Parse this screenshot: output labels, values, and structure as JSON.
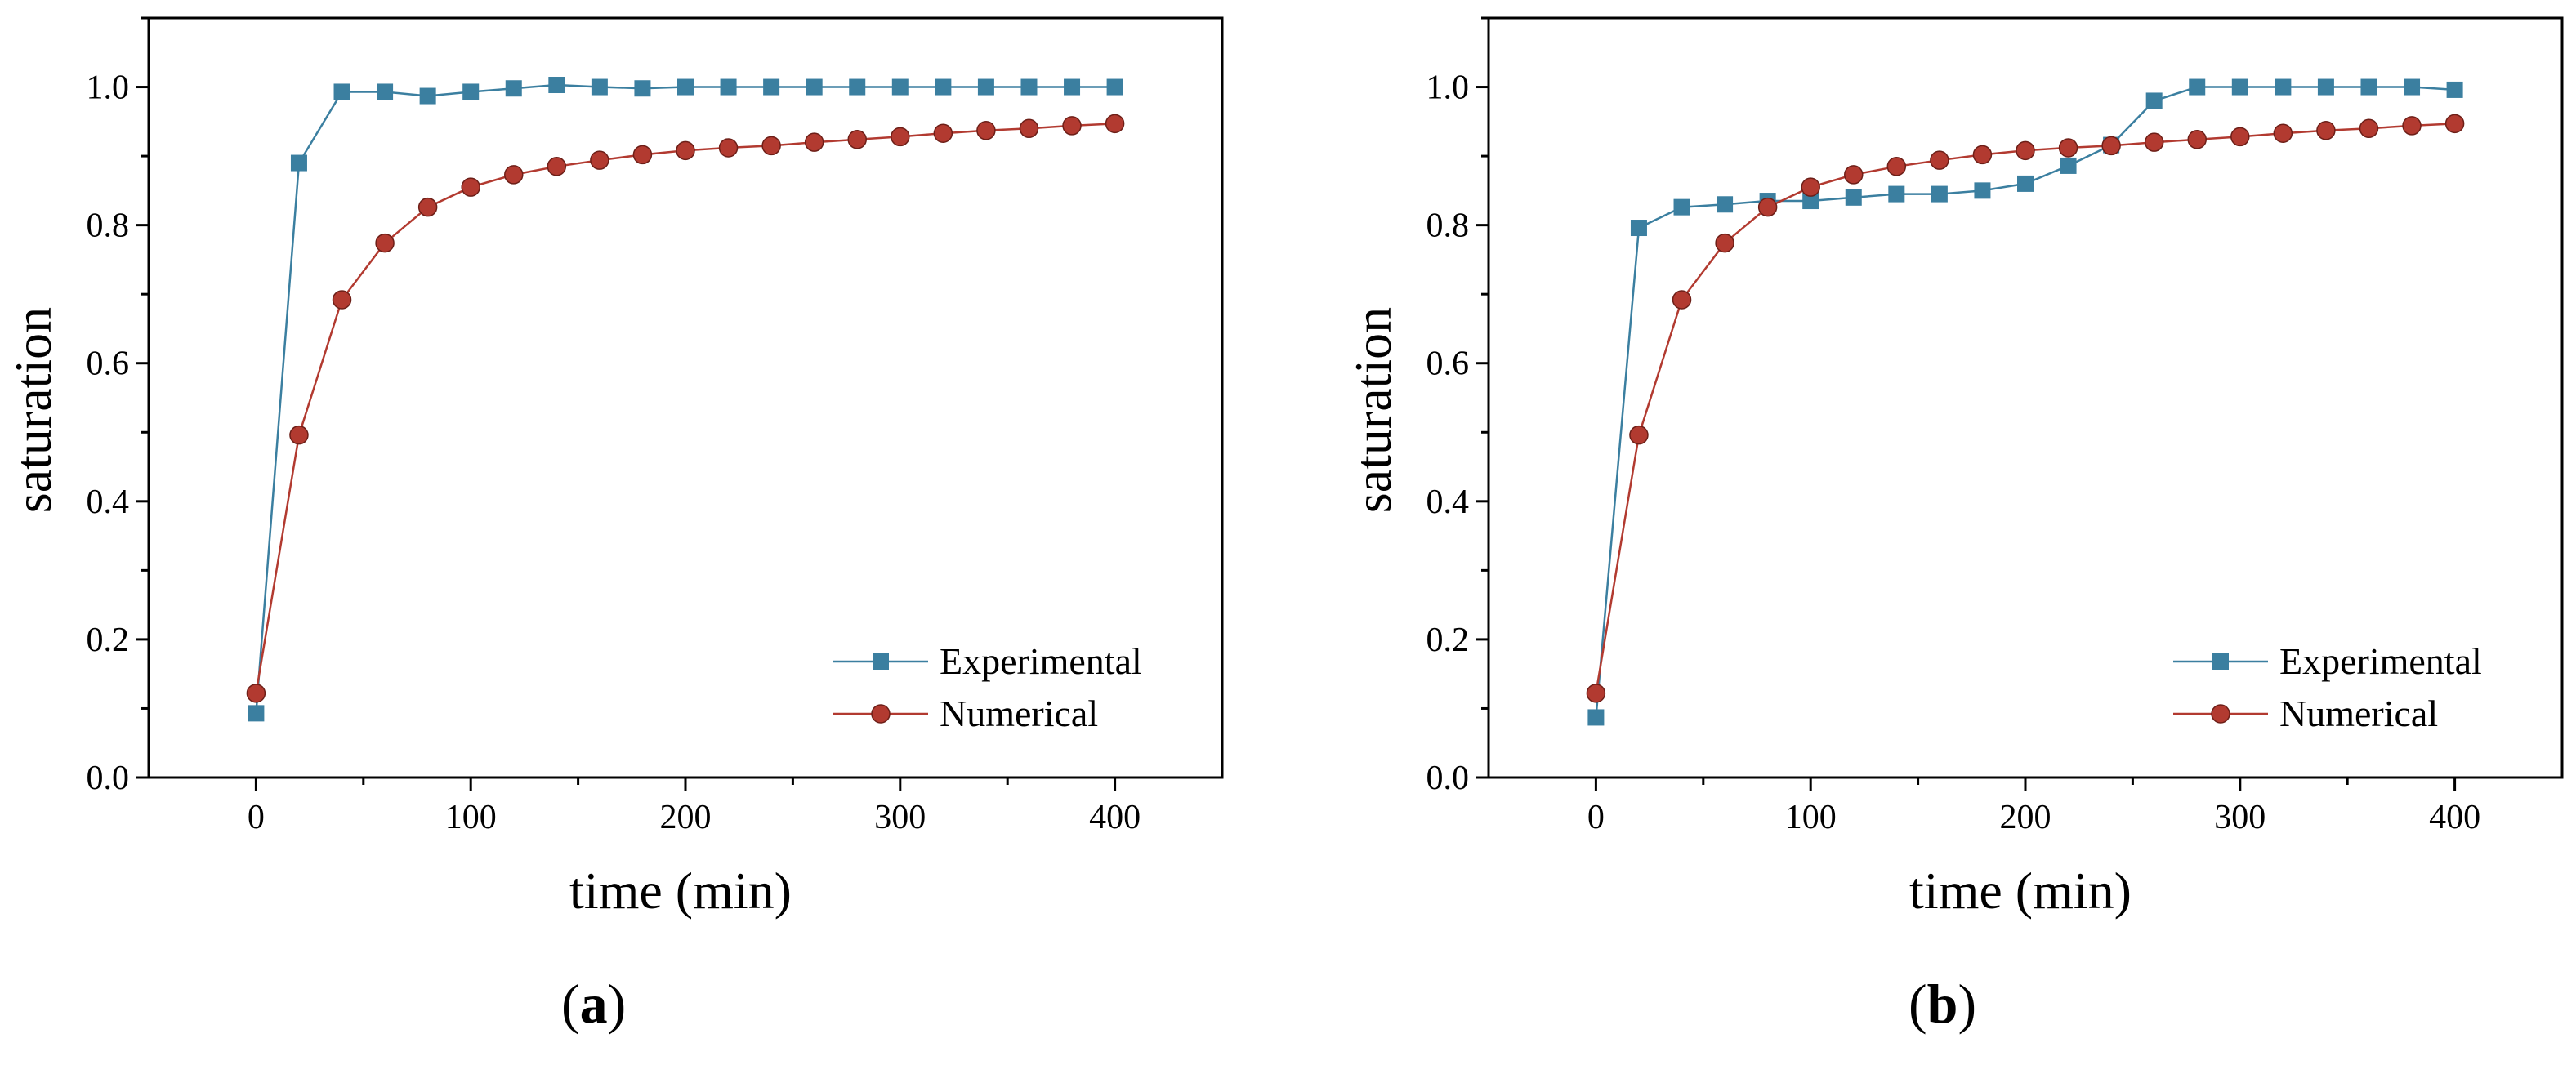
{
  "figure": {
    "panels": [
      {
        "label_open": "(",
        "label_letter": "a",
        "label_close": ")"
      },
      {
        "label_open": "(",
        "label_letter": "b",
        "label_close": ")"
      }
    ]
  },
  "colors": {
    "experimental": "#3b7fa0",
    "numerical": "#b23a30",
    "axis": "#000000"
  },
  "chart_data": [
    {
      "type": "line",
      "xlabel": "time (min)",
      "ylabel": "saturation",
      "xlim": [
        -50,
        450
      ],
      "ylim": [
        0.0,
        1.1
      ],
      "xticks": [
        0,
        100,
        200,
        300,
        400
      ],
      "yticks": [
        0.0,
        0.2,
        0.4,
        0.6,
        0.8,
        1.0
      ],
      "xtick_labels": [
        "0",
        "100",
        "200",
        "300",
        "400"
      ],
      "ytick_labels": [
        "0.0",
        "0.2",
        "0.4",
        "0.6",
        "0.8",
        "1.0"
      ],
      "legend_position": "bottom-right",
      "series": [
        {
          "name": "Experimental",
          "marker": "square",
          "x": [
            0,
            20,
            40,
            60,
            80,
            100,
            120,
            140,
            160,
            180,
            200,
            220,
            240,
            260,
            280,
            300,
            320,
            340,
            360,
            380,
            400
          ],
          "y": [
            0.093,
            0.89,
            0.993,
            0.993,
            0.987,
            0.993,
            0.998,
            1.003,
            1.0,
            0.998,
            1.0,
            1.0,
            1.0,
            1.0,
            1.0,
            1.0,
            1.0,
            1.0,
            1.0,
            1.0,
            1.0
          ]
        },
        {
          "name": "Numerical",
          "marker": "circle",
          "x": [
            0,
            20,
            40,
            60,
            80,
            100,
            120,
            140,
            160,
            180,
            200,
            220,
            240,
            260,
            280,
            300,
            320,
            340,
            360,
            380,
            400
          ],
          "y": [
            0.122,
            0.496,
            0.692,
            0.774,
            0.826,
            0.855,
            0.873,
            0.885,
            0.894,
            0.902,
            0.908,
            0.912,
            0.915,
            0.92,
            0.924,
            0.928,
            0.933,
            0.937,
            0.94,
            0.944,
            0.947
          ]
        }
      ]
    },
    {
      "type": "line",
      "xlabel": "time (min)",
      "ylabel": "saturation",
      "xlim": [
        -50,
        450
      ],
      "ylim": [
        0.0,
        1.1
      ],
      "xticks": [
        0,
        100,
        200,
        300,
        400
      ],
      "yticks": [
        0.0,
        0.2,
        0.4,
        0.6,
        0.8,
        1.0
      ],
      "xtick_labels": [
        "0",
        "100",
        "200",
        "300",
        "400"
      ],
      "ytick_labels": [
        "0.0",
        "0.2",
        "0.4",
        "0.6",
        "0.8",
        "1.0"
      ],
      "legend_position": "bottom-right",
      "series": [
        {
          "name": "Experimental",
          "marker": "square",
          "x": [
            0,
            20,
            40,
            60,
            80,
            100,
            120,
            140,
            160,
            180,
            200,
            220,
            240,
            260,
            280,
            300,
            320,
            340,
            360,
            380,
            400
          ],
          "y": [
            0.087,
            0.796,
            0.826,
            0.83,
            0.835,
            0.835,
            0.84,
            0.845,
            0.845,
            0.85,
            0.86,
            0.886,
            0.916,
            0.98,
            1.0,
            1.0,
            1.0,
            1.0,
            1.0,
            1.0,
            0.996
          ]
        },
        {
          "name": "Numerical",
          "marker": "circle",
          "x": [
            0,
            20,
            40,
            60,
            80,
            100,
            120,
            140,
            160,
            180,
            200,
            220,
            240,
            260,
            280,
            300,
            320,
            340,
            360,
            380,
            400
          ],
          "y": [
            0.122,
            0.496,
            0.692,
            0.774,
            0.826,
            0.855,
            0.873,
            0.885,
            0.894,
            0.902,
            0.908,
            0.912,
            0.915,
            0.92,
            0.924,
            0.928,
            0.933,
            0.937,
            0.94,
            0.944,
            0.947
          ]
        }
      ]
    }
  ]
}
